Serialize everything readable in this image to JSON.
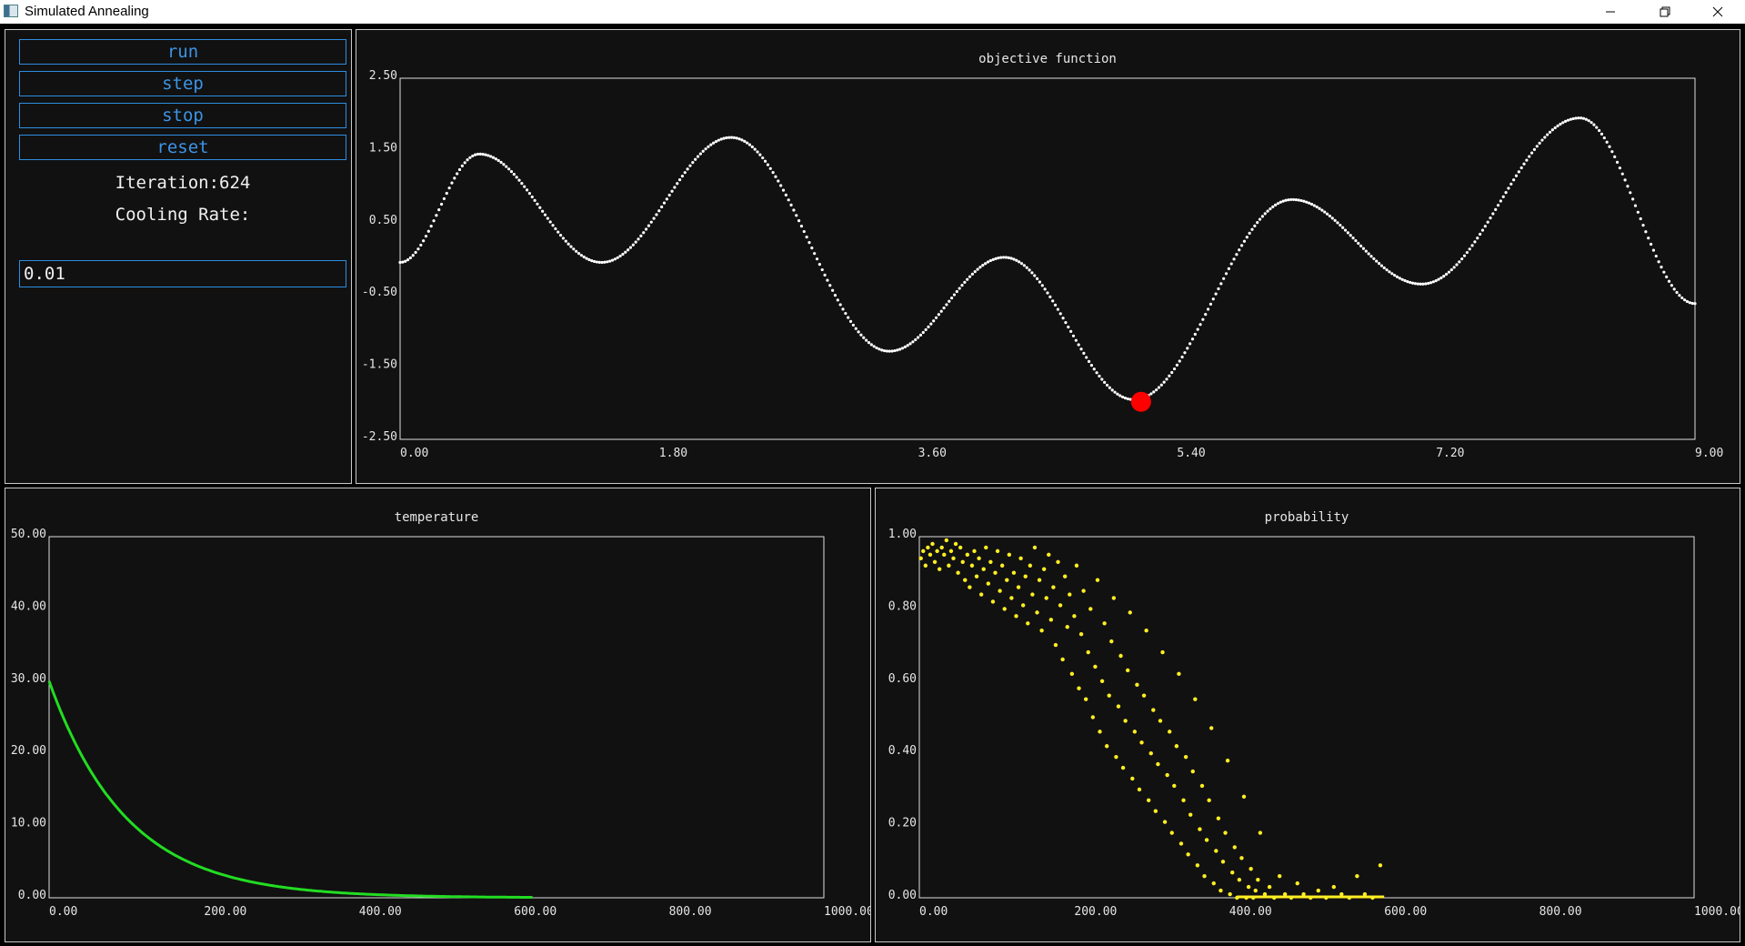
{
  "window": {
    "title": "Simulated Annealing",
    "icons": {
      "app": "app-icon",
      "minimize": "minimize-icon",
      "restore": "restore-icon",
      "close": "close-icon"
    }
  },
  "controls": {
    "run_label": "run",
    "step_label": "step",
    "stop_label": "stop",
    "reset_label": "reset",
    "iteration_text": "Iteration:624",
    "cooling_rate_label": "Cooling Rate:",
    "cooling_rate_value": "0.01"
  },
  "colors": {
    "panel_bg": "#111111",
    "border": "#c8c8c8",
    "accent": "#3c94e6",
    "objective_curve": "#ffffff",
    "current_point": "#ff0000",
    "temperature_curve": "#22dd22",
    "probability_points": "#ffee22"
  },
  "chart_data": [
    {
      "type": "scatter",
      "title": "objective function",
      "xlim": [
        0,
        9
      ],
      "ylim": [
        -2.5,
        2.5
      ],
      "x_ticks": [
        "0.00",
        "1.80",
        "3.60",
        "5.40",
        "7.20",
        "9.00"
      ],
      "y_ticks": [
        "2.50",
        "1.50",
        "0.50",
        "-0.50",
        "-1.50",
        "-2.50"
      ],
      "curve_keypoints": [
        [
          0,
          -0.05
        ],
        [
          0.55,
          1.45
        ],
        [
          1.4,
          -0.05
        ],
        [
          2.3,
          1.68
        ],
        [
          3.4,
          -1.28
        ],
        [
          4.2,
          0.02
        ],
        [
          5.1,
          -1.95
        ],
        [
          6.2,
          0.82
        ],
        [
          7.1,
          -0.35
        ],
        [
          8.2,
          1.95
        ],
        [
          9,
          -0.62
        ]
      ],
      "current_point": {
        "x": 5.15,
        "y": -1.98
      }
    },
    {
      "type": "line",
      "title": "temperature",
      "xlim": [
        0,
        1000
      ],
      "ylim": [
        0,
        50
      ],
      "x_ticks": [
        "0.00",
        "200.00",
        "400.00",
        "600.00",
        "800.00",
        "1000.00"
      ],
      "y_ticks": [
        "50.00",
        "40.00",
        "30.00",
        "20.00",
        "10.00",
        "0.00"
      ],
      "series": [
        {
          "initial": 30,
          "decay_rate": 0.01,
          "x_max": 624
        }
      ]
    },
    {
      "type": "scatter",
      "title": "probability",
      "xlim": [
        0,
        1000
      ],
      "ylim": [
        0,
        1
      ],
      "x_ticks": [
        "0.00",
        "200.00",
        "400.00",
        "600.00",
        "800.00",
        "1000.00"
      ],
      "y_ticks": [
        "1.00",
        "0.80",
        "0.60",
        "0.40",
        "0.20",
        "0.00"
      ],
      "points": [
        [
          2,
          0.94
        ],
        [
          5,
          0.96
        ],
        [
          8,
          0.92
        ],
        [
          11,
          0.97
        ],
        [
          14,
          0.95
        ],
        [
          17,
          0.98
        ],
        [
          20,
          0.93
        ],
        [
          23,
          0.96
        ],
        [
          26,
          0.91
        ],
        [
          29,
          0.97
        ],
        [
          32,
          0.95
        ],
        [
          35,
          0.99
        ],
        [
          38,
          0.92
        ],
        [
          41,
          0.96
        ],
        [
          44,
          0.94
        ],
        [
          47,
          0.98
        ],
        [
          50,
          0.9
        ],
        [
          53,
          0.97
        ],
        [
          56,
          0.93
        ],
        [
          59,
          0.88
        ],
        [
          62,
          0.95
        ],
        [
          65,
          0.86
        ],
        [
          68,
          0.92
        ],
        [
          71,
          0.96
        ],
        [
          74,
          0.89
        ],
        [
          77,
          0.94
        ],
        [
          80,
          0.84
        ],
        [
          83,
          0.91
        ],
        [
          86,
          0.97
        ],
        [
          89,
          0.87
        ],
        [
          92,
          0.93
        ],
        [
          95,
          0.82
        ],
        [
          98,
          0.9
        ],
        [
          101,
          0.96
        ],
        [
          104,
          0.85
        ],
        [
          107,
          0.92
        ],
        [
          110,
          0.8
        ],
        [
          113,
          0.88
        ],
        [
          116,
          0.95
        ],
        [
          119,
          0.83
        ],
        [
          122,
          0.9
        ],
        [
          125,
          0.78
        ],
        [
          128,
          0.86
        ],
        [
          131,
          0.94
        ],
        [
          134,
          0.81
        ],
        [
          137,
          0.89
        ],
        [
          140,
          0.76
        ],
        [
          143,
          0.92
        ],
        [
          146,
          0.84
        ],
        [
          149,
          0.97
        ],
        [
          152,
          0.79
        ],
        [
          155,
          0.88
        ],
        [
          158,
          0.74
        ],
        [
          161,
          0.91
        ],
        [
          164,
          0.83
        ],
        [
          167,
          0.95
        ],
        [
          170,
          0.77
        ],
        [
          173,
          0.86
        ],
        [
          176,
          0.7
        ],
        [
          179,
          0.93
        ],
        [
          182,
          0.81
        ],
        [
          185,
          0.66
        ],
        [
          188,
          0.89
        ],
        [
          191,
          0.75
        ],
        [
          194,
          0.84
        ],
        [
          197,
          0.62
        ],
        [
          200,
          0.78
        ],
        [
          203,
          0.92
        ],
        [
          206,
          0.58
        ],
        [
          209,
          0.73
        ],
        [
          212,
          0.85
        ],
        [
          215,
          0.55
        ],
        [
          218,
          0.68
        ],
        [
          221,
          0.8
        ],
        [
          224,
          0.5
        ],
        [
          227,
          0.64
        ],
        [
          230,
          0.88
        ],
        [
          233,
          0.46
        ],
        [
          236,
          0.6
        ],
        [
          239,
          0.76
        ],
        [
          242,
          0.42
        ],
        [
          245,
          0.56
        ],
        [
          248,
          0.71
        ],
        [
          251,
          0.83
        ],
        [
          254,
          0.39
        ],
        [
          257,
          0.53
        ],
        [
          260,
          0.67
        ],
        [
          263,
          0.36
        ],
        [
          266,
          0.49
        ],
        [
          269,
          0.63
        ],
        [
          272,
          0.79
        ],
        [
          275,
          0.33
        ],
        [
          278,
          0.46
        ],
        [
          281,
          0.59
        ],
        [
          284,
          0.3
        ],
        [
          287,
          0.43
        ],
        [
          290,
          0.56
        ],
        [
          293,
          0.74
        ],
        [
          296,
          0.27
        ],
        [
          299,
          0.4
        ],
        [
          302,
          0.52
        ],
        [
          305,
          0.24
        ],
        [
          308,
          0.37
        ],
        [
          311,
          0.49
        ],
        [
          314,
          0.68
        ],
        [
          317,
          0.21
        ],
        [
          320,
          0.34
        ],
        [
          323,
          0.46
        ],
        [
          326,
          0.18
        ],
        [
          329,
          0.31
        ],
        [
          332,
          0.42
        ],
        [
          335,
          0.62
        ],
        [
          338,
          0.15
        ],
        [
          341,
          0.27
        ],
        [
          344,
          0.39
        ],
        [
          347,
          0.12
        ],
        [
          350,
          0.23
        ],
        [
          353,
          0.35
        ],
        [
          356,
          0.55
        ],
        [
          359,
          0.09
        ],
        [
          362,
          0.19
        ],
        [
          365,
          0.31
        ],
        [
          368,
          0.06
        ],
        [
          371,
          0.16
        ],
        [
          374,
          0.27
        ],
        [
          377,
          0.47
        ],
        [
          380,
          0.04
        ],
        [
          383,
          0.13
        ],
        [
          386,
          0.22
        ],
        [
          389,
          0.02
        ],
        [
          392,
          0.1
        ],
        [
          395,
          0.18
        ],
        [
          398,
          0.38
        ],
        [
          401,
          0.01
        ],
        [
          404,
          0.07
        ],
        [
          407,
          0.14
        ],
        [
          410,
          0.0
        ],
        [
          413,
          0.05
        ],
        [
          416,
          0.11
        ],
        [
          419,
          0.28
        ],
        [
          422,
          0.0
        ],
        [
          425,
          0.03
        ],
        [
          428,
          0.08
        ],
        [
          431,
          0.0
        ],
        [
          434,
          0.02
        ],
        [
          437,
          0.05
        ],
        [
          440,
          0.18
        ],
        [
          446,
          0.01
        ],
        [
          452,
          0.03
        ],
        [
          458,
          0.0
        ],
        [
          465,
          0.06
        ],
        [
          472,
          0.01
        ],
        [
          480,
          0.0
        ],
        [
          488,
          0.04
        ],
        [
          496,
          0.01
        ],
        [
          505,
          0.0
        ],
        [
          515,
          0.02
        ],
        [
          525,
          0.0
        ],
        [
          535,
          0.03
        ],
        [
          545,
          0.01
        ],
        [
          555,
          0.0
        ],
        [
          565,
          0.06
        ],
        [
          575,
          0.01
        ],
        [
          585,
          0.0
        ],
        [
          595,
          0.09
        ]
      ]
    }
  ]
}
